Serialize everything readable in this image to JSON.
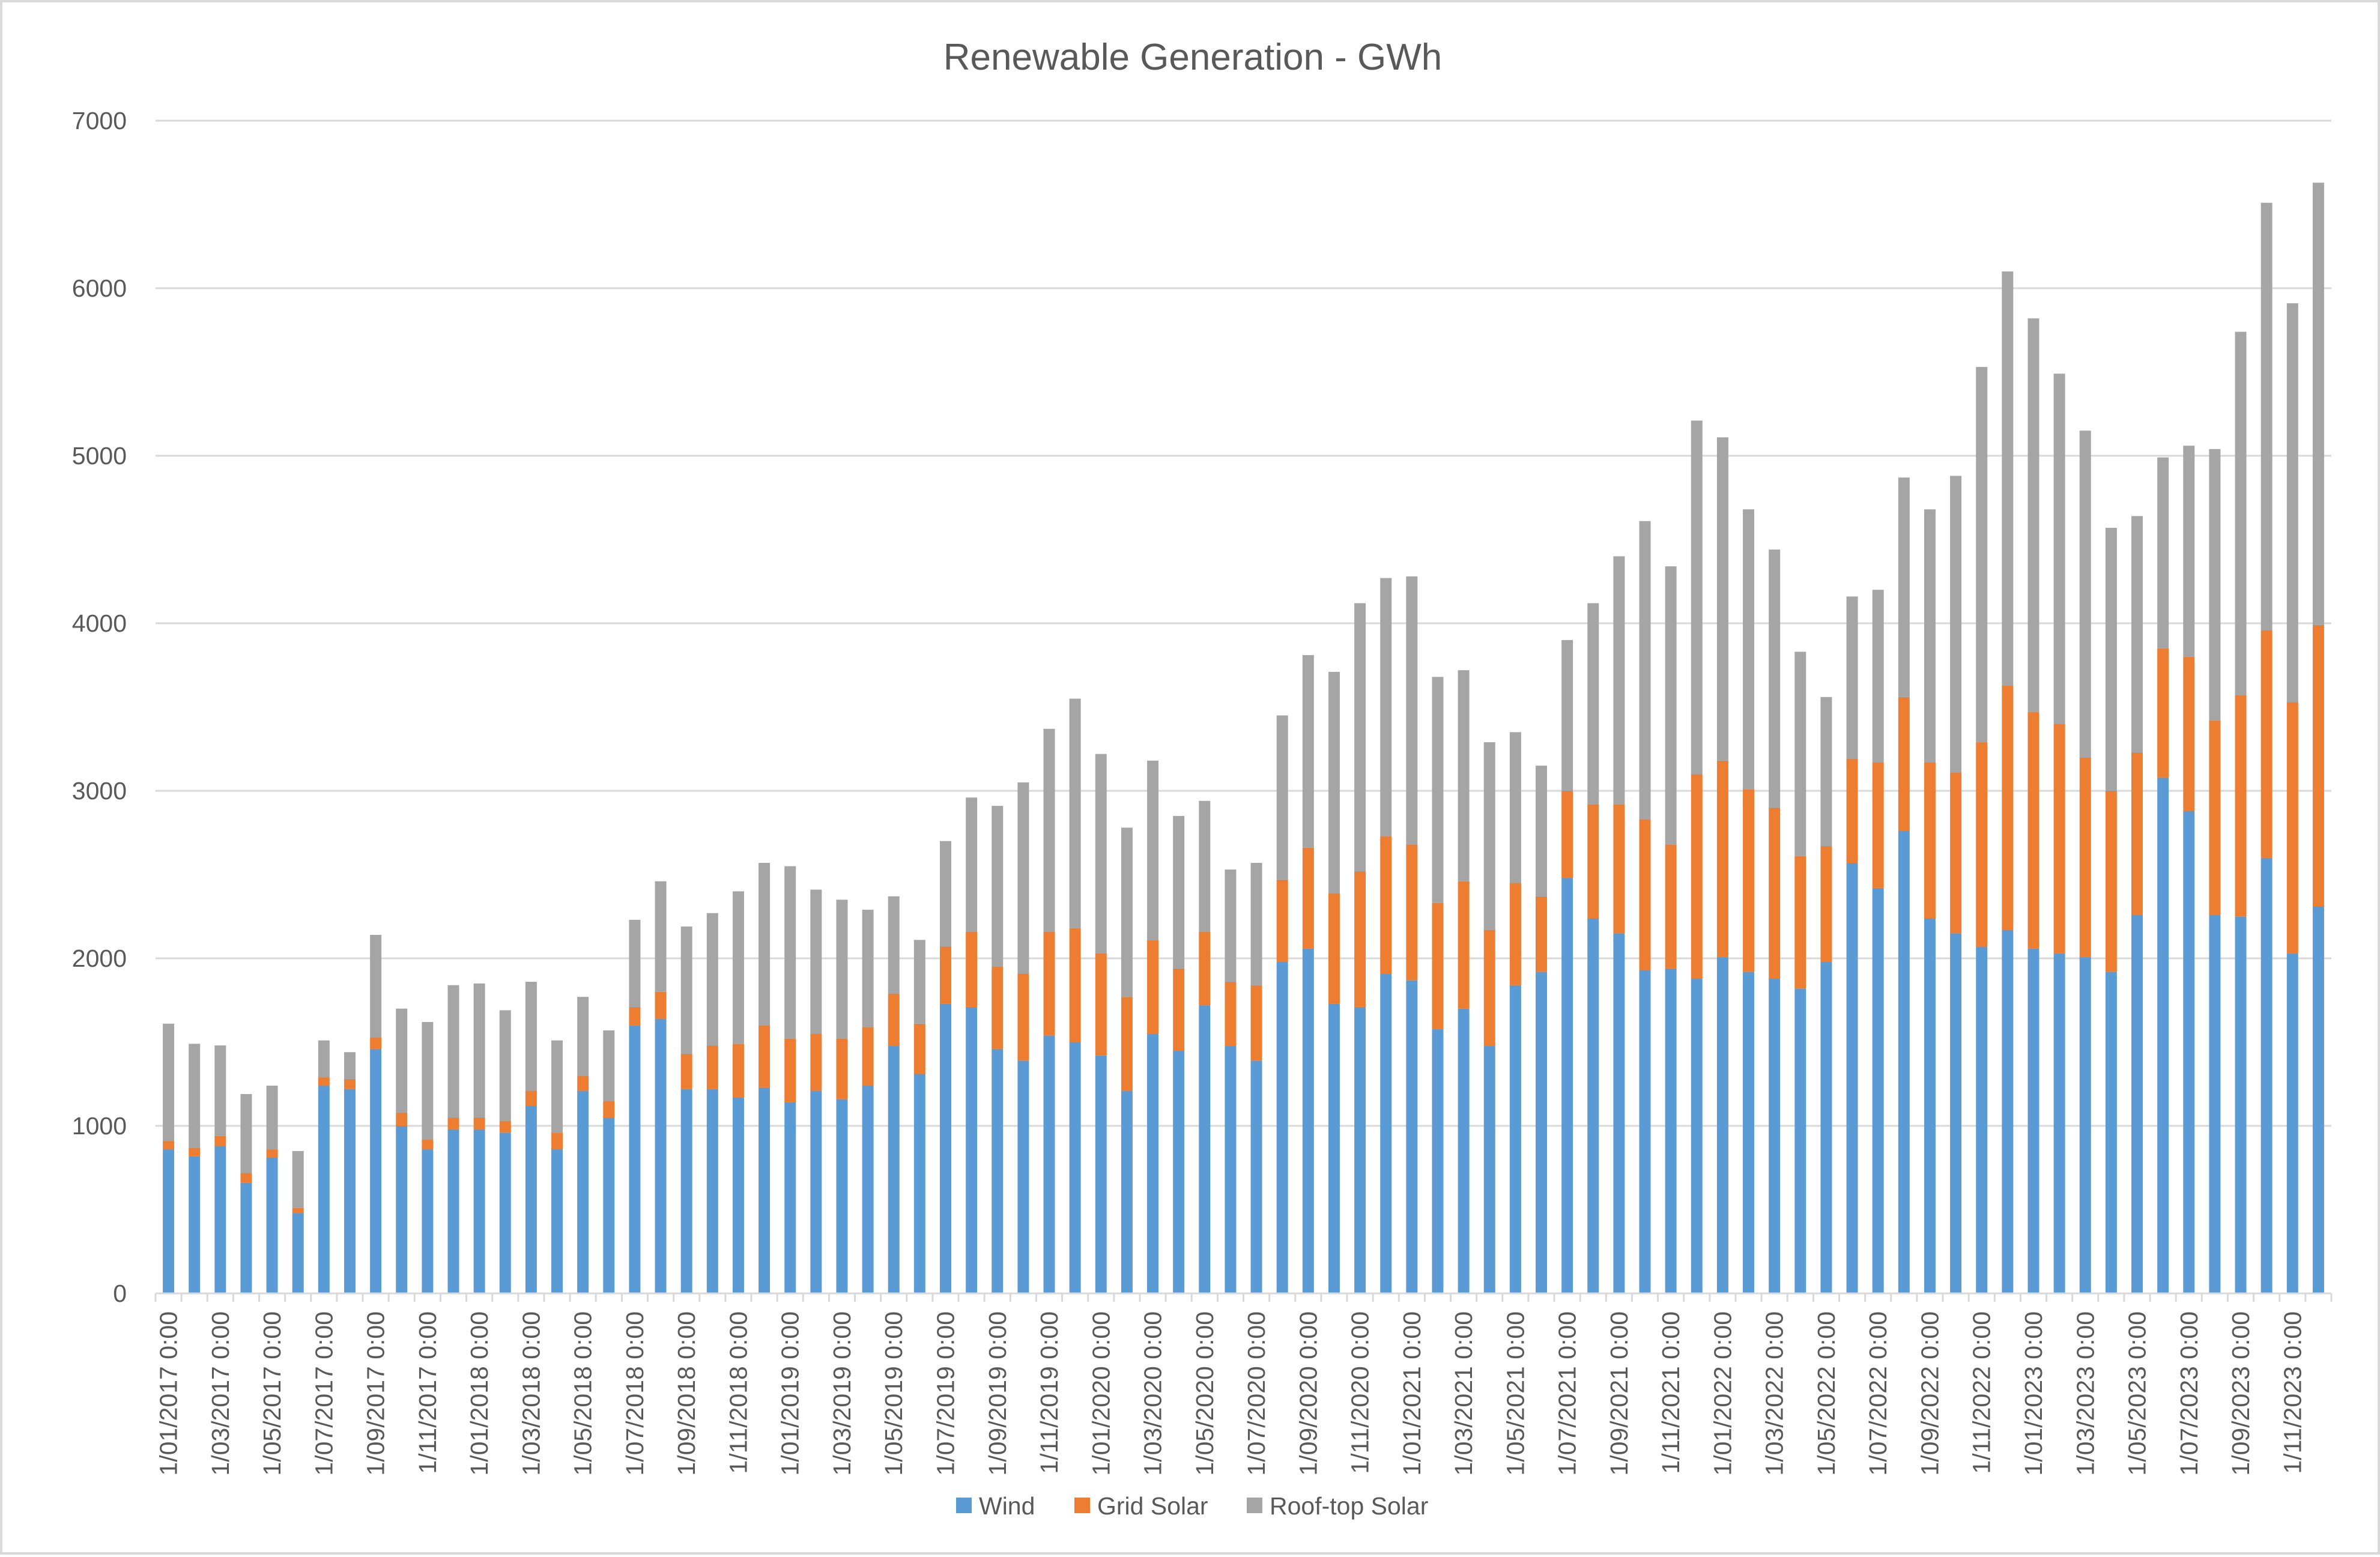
{
  "chart_data": {
    "type": "bar",
    "stacked": true,
    "title": "Renewable Generation - GWh",
    "xlabel": "",
    "ylabel": "",
    "ylim": [
      0,
      7000
    ],
    "yticks": [
      0,
      1000,
      2000,
      3000,
      4000,
      5000,
      6000,
      7000
    ],
    "grid": true,
    "legend_position": "bottom",
    "categories": [
      "1/01/2017 0:00",
      "1/02/2017 0:00",
      "1/03/2017 0:00",
      "1/04/2017 0:00",
      "1/05/2017 0:00",
      "1/06/2017 0:00",
      "1/07/2017 0:00",
      "1/08/2017 0:00",
      "1/09/2017 0:00",
      "1/10/2017 0:00",
      "1/11/2017 0:00",
      "1/12/2017 0:00",
      "1/01/2018 0:00",
      "1/02/2018 0:00",
      "1/03/2018 0:00",
      "1/04/2018 0:00",
      "1/05/2018 0:00",
      "1/06/2018 0:00",
      "1/07/2018 0:00",
      "1/08/2018 0:00",
      "1/09/2018 0:00",
      "1/10/2018 0:00",
      "1/11/2018 0:00",
      "1/12/2018 0:00",
      "1/01/2019 0:00",
      "1/02/2019 0:00",
      "1/03/2019 0:00",
      "1/04/2019 0:00",
      "1/05/2019 0:00",
      "1/06/2019 0:00",
      "1/07/2019 0:00",
      "1/08/2019 0:00",
      "1/09/2019 0:00",
      "1/10/2019 0:00",
      "1/11/2019 0:00",
      "1/12/2019 0:00",
      "1/01/2020 0:00",
      "1/02/2020 0:00",
      "1/03/2020 0:00",
      "1/04/2020 0:00",
      "1/05/2020 0:00",
      "1/06/2020 0:00",
      "1/07/2020 0:00",
      "1/08/2020 0:00",
      "1/09/2020 0:00",
      "1/10/2020 0:00",
      "1/11/2020 0:00",
      "1/12/2020 0:00",
      "1/01/2021 0:00",
      "1/02/2021 0:00",
      "1/03/2021 0:00",
      "1/04/2021 0:00",
      "1/05/2021 0:00",
      "1/06/2021 0:00",
      "1/07/2021 0:00",
      "1/08/2021 0:00",
      "1/09/2021 0:00",
      "1/10/2021 0:00",
      "1/11/2021 0:00",
      "1/12/2021 0:00",
      "1/01/2022 0:00",
      "1/02/2022 0:00",
      "1/03/2022 0:00",
      "1/04/2022 0:00",
      "1/05/2022 0:00",
      "1/06/2022 0:00",
      "1/07/2022 0:00",
      "1/08/2022 0:00",
      "1/09/2022 0:00",
      "1/10/2022 0:00",
      "1/11/2022 0:00",
      "1/12/2022 0:00",
      "1/01/2023 0:00",
      "1/02/2023 0:00",
      "1/03/2023 0:00",
      "1/04/2023 0:00",
      "1/05/2023 0:00",
      "1/06/2023 0:00",
      "1/07/2023 0:00",
      "1/08/2023 0:00",
      "1/09/2023 0:00",
      "1/10/2023 0:00",
      "1/11/2023 0:00",
      "1/12/2023 0:00"
    ],
    "series": [
      {
        "name": "Wind",
        "color": "#5b9bd5",
        "values": [
          860,
          820,
          880,
          660,
          810,
          480,
          1240,
          1220,
          1460,
          1000,
          860,
          980,
          980,
          960,
          1120,
          860,
          1210,
          1050,
          1600,
          1640,
          1220,
          1220,
          1170,
          1230,
          1140,
          1210,
          1160,
          1240,
          1480,
          1310,
          1730,
          1710,
          1460,
          1390,
          1540,
          1500,
          1420,
          1210,
          1550,
          1450,
          1720,
          1480,
          1390,
          1980,
          2060,
          1730,
          1710,
          1910,
          1870,
          1580,
          1700,
          1480,
          1840,
          1920,
          2480,
          2240,
          2150,
          1930,
          1940,
          1880,
          2010,
          1920,
          1880,
          1820,
          1980,
          2570,
          2420,
          2760,
          2240,
          2150,
          2070,
          2170,
          2060,
          2030,
          2010,
          1920,
          2260,
          3080,
          2880,
          2260,
          2250,
          2600,
          2030,
          2310
        ]
      },
      {
        "name": "Grid Solar",
        "color": "#ed7d31",
        "values": [
          50,
          50,
          60,
          60,
          50,
          30,
          50,
          60,
          70,
          80,
          60,
          70,
          70,
          70,
          90,
          100,
          90,
          100,
          110,
          160,
          210,
          260,
          320,
          370,
          380,
          340,
          360,
          350,
          310,
          300,
          340,
          450,
          490,
          520,
          620,
          680,
          610,
          560,
          560,
          490,
          440,
          380,
          450,
          490,
          600,
          660,
          810,
          820,
          810,
          750,
          760,
          690,
          610,
          450,
          520,
          680,
          770,
          900,
          740,
          1220,
          1170,
          1090,
          1020,
          790,
          690,
          620,
          750,
          800,
          930,
          960,
          1220,
          1460,
          1410,
          1370,
          1190,
          1080,
          970,
          770,
          920,
          1160,
          1320,
          1360,
          1500,
          1680
        ]
      },
      {
        "name": "Roof-top Solar",
        "color": "#a5a5a5",
        "values": [
          700,
          620,
          540,
          470,
          380,
          340,
          220,
          160,
          610,
          620,
          700,
          790,
          800,
          660,
          650,
          550,
          470,
          420,
          520,
          660,
          760,
          790,
          910,
          970,
          1030,
          860,
          830,
          700,
          580,
          500,
          630,
          800,
          960,
          1140,
          1210,
          1370,
          1190,
          1010,
          1070,
          910,
          780,
          670,
          730,
          980,
          1150,
          1320,
          1600,
          1540,
          1600,
          1350,
          1260,
          1120,
          900,
          780,
          900,
          1200,
          1480,
          1780,
          1660,
          2110,
          1930,
          1670,
          1540,
          1220,
          890,
          970,
          1030,
          1310,
          1510,
          1770,
          2240,
          2470,
          2350,
          2090,
          1950,
          1570,
          1410,
          1140,
          1260,
          1620,
          2170,
          2550,
          2380,
          2640
        ]
      }
    ]
  }
}
